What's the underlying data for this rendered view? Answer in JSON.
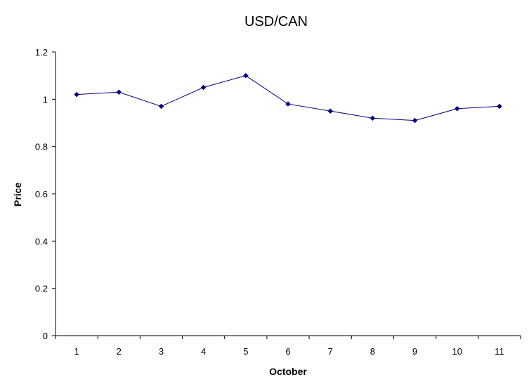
{
  "chart_data": {
    "type": "line",
    "title": "USD/CAN",
    "xlabel": "October",
    "ylabel": "Price",
    "categories": [
      "1",
      "2",
      "3",
      "4",
      "5",
      "6",
      "7",
      "8",
      "9",
      "10",
      "11"
    ],
    "series": [
      {
        "values": [
          1.02,
          1.03,
          0.97,
          1.05,
          1.1,
          0.98,
          0.95,
          0.92,
          0.91,
          0.96,
          0.97
        ],
        "color": "#000080",
        "marker": "diamond"
      }
    ],
    "ylim": [
      0,
      1.2
    ],
    "yticks": [
      "0",
      "0.2",
      "0.4",
      "0.6",
      "0.8",
      "1",
      "1.2"
    ],
    "grid": false,
    "legend": "none"
  }
}
